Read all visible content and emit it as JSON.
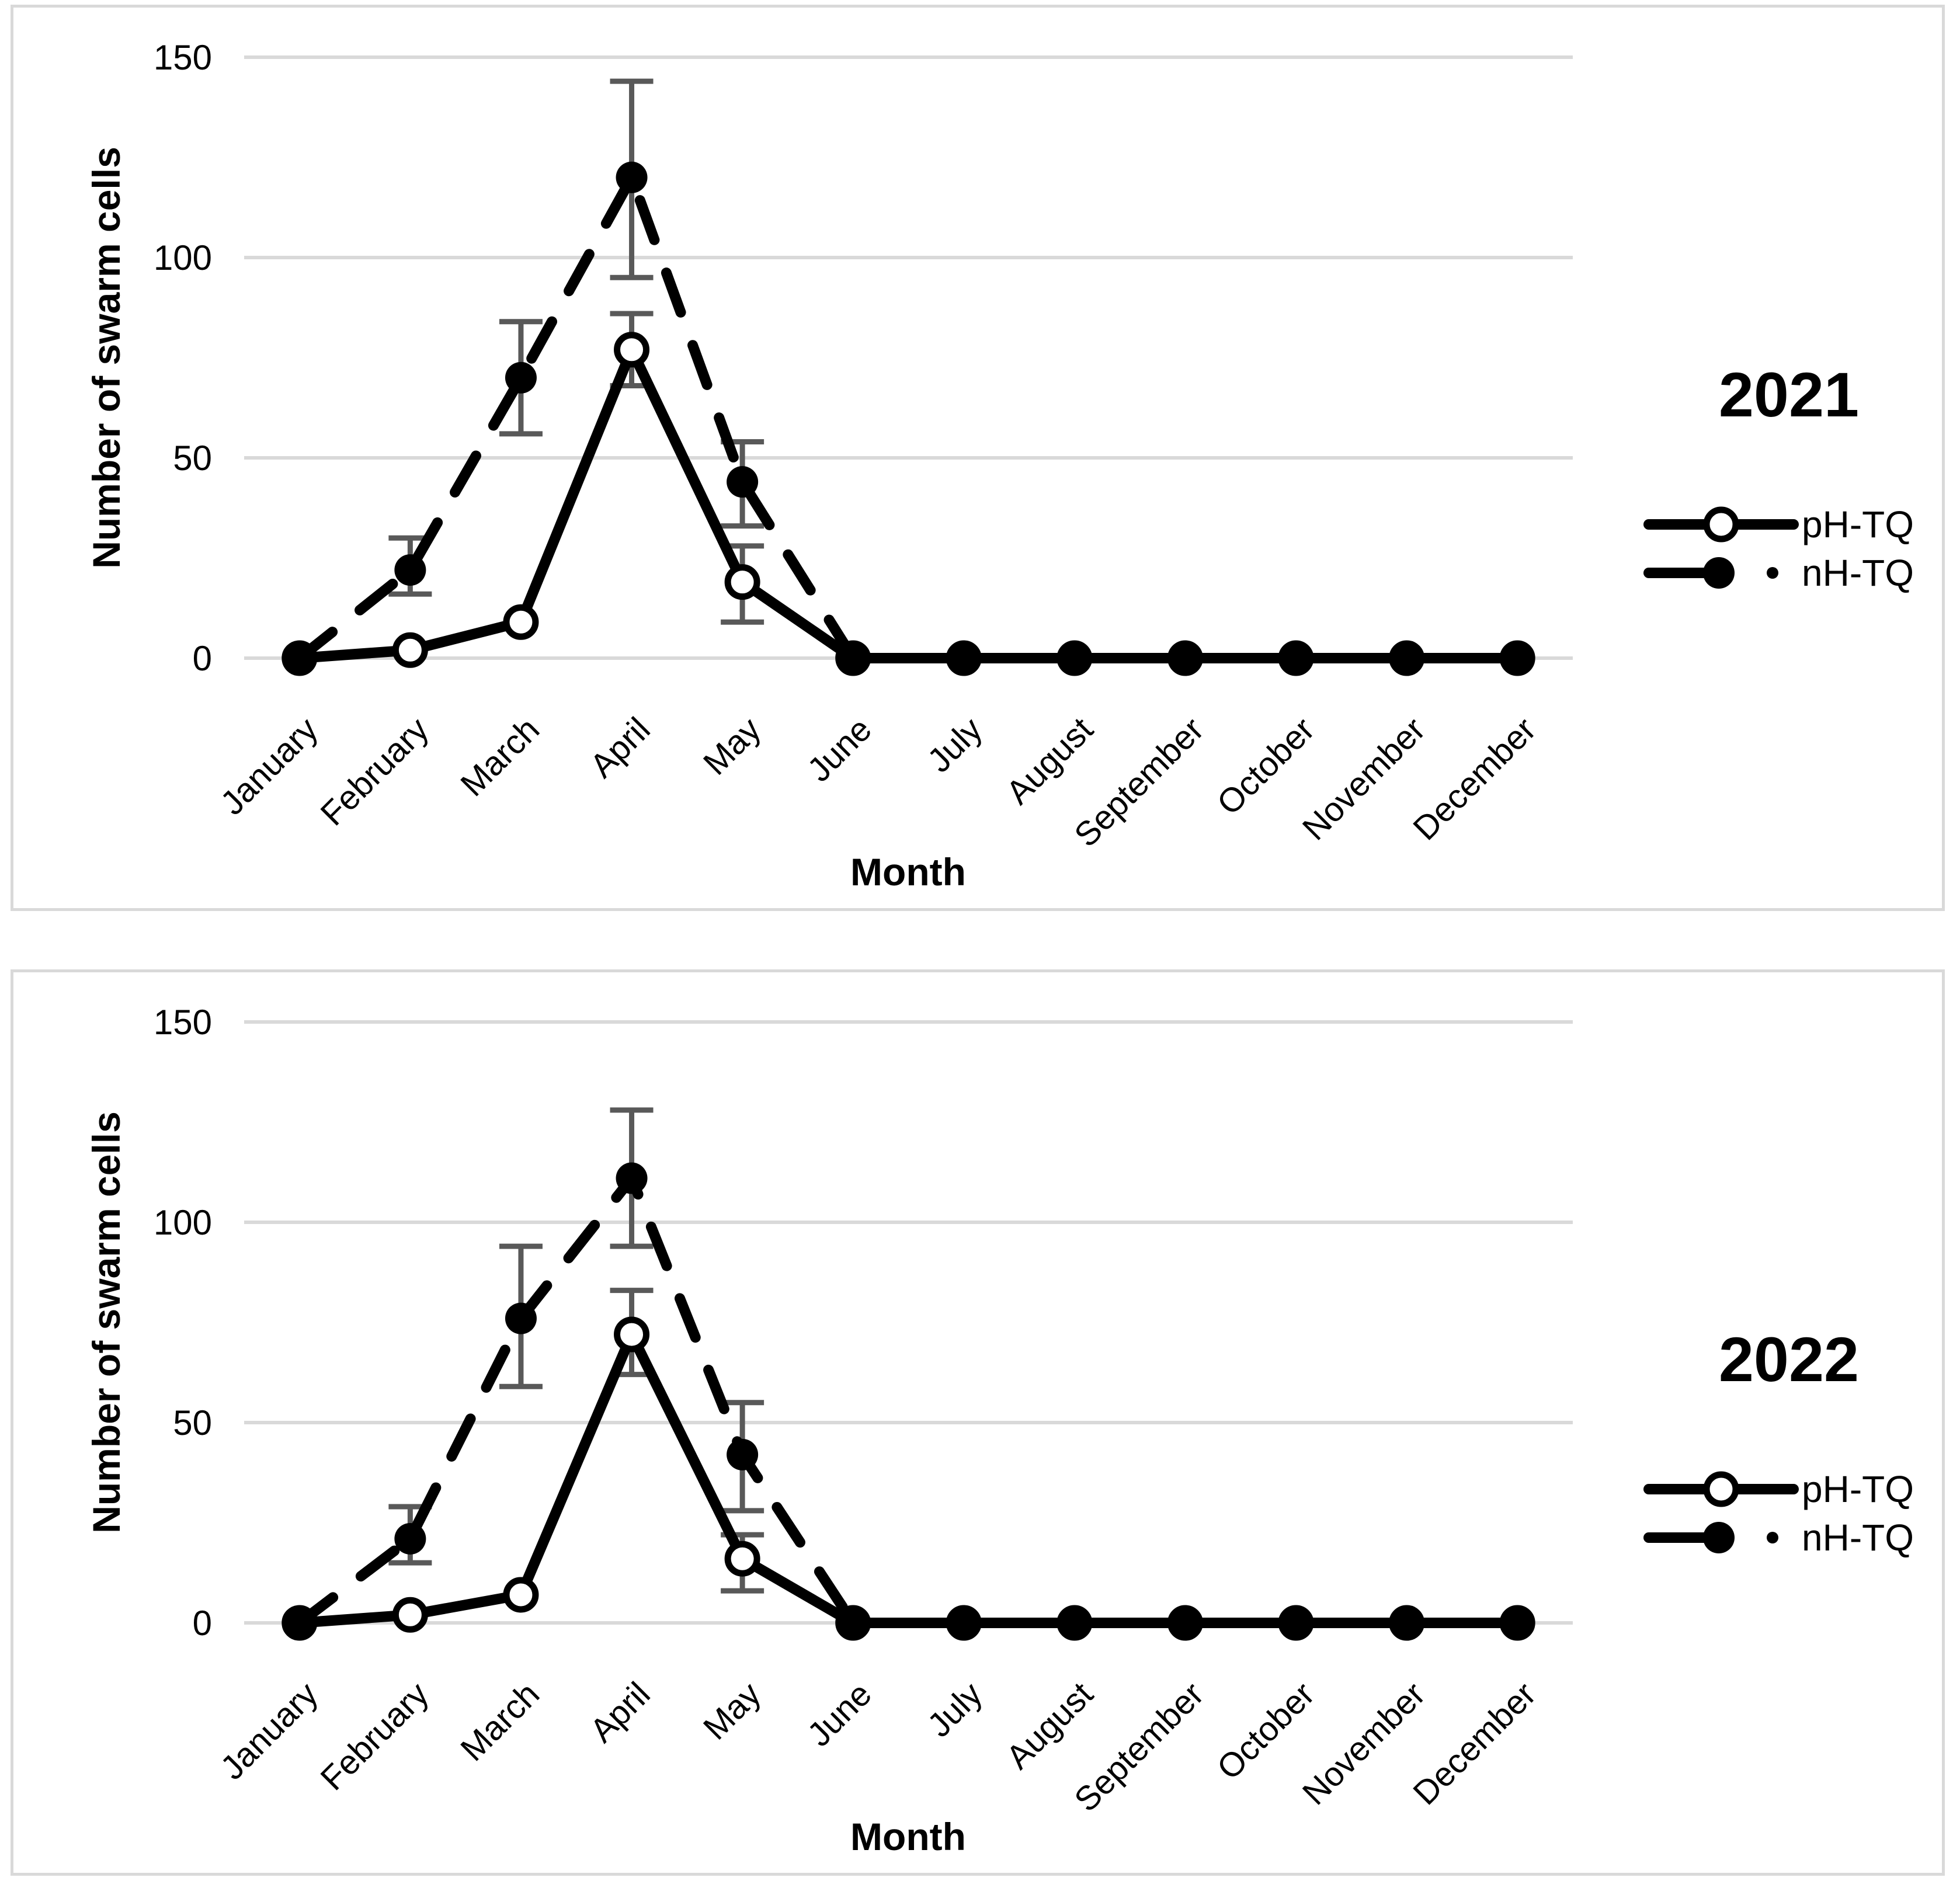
{
  "colors": {
    "series_line": "#000000",
    "marker_fill": "#000000",
    "marker_open_fill": "#ffffff",
    "error_bar": "#595959",
    "gridline": "#d9d9d9",
    "panel_border": "#d9d9d9",
    "text": "#000000",
    "background": "#ffffff"
  },
  "chart_data": [
    {
      "type": "line",
      "title": "2021",
      "xlabel": "Month",
      "ylabel": "Number of swarm cells",
      "ylim": [
        0,
        150
      ],
      "yticks": [
        0,
        50,
        100,
        150
      ],
      "grid": true,
      "legend_position": "right",
      "categories": [
        "January",
        "February",
        "March",
        "April",
        "May",
        "June",
        "July",
        "August",
        "September",
        "October",
        "November",
        "December"
      ],
      "series": [
        {
          "name": "pH-TQ",
          "line": "solid",
          "marker": "open-circle",
          "values": [
            0,
            2,
            9,
            77,
            19,
            0,
            0,
            0,
            0,
            0,
            0,
            0
          ],
          "error_low": [
            null,
            null,
            null,
            68,
            9,
            null,
            null,
            null,
            null,
            null,
            null,
            null
          ],
          "error_high": [
            null,
            null,
            null,
            86,
            28,
            null,
            null,
            null,
            null,
            null,
            null,
            null
          ]
        },
        {
          "name": "nH-TQ",
          "line": "dashed",
          "marker": "filled-circle",
          "values": [
            0,
            22,
            70,
            120,
            44,
            0,
            0,
            0,
            0,
            0,
            0,
            0
          ],
          "error_low": [
            null,
            16,
            56,
            95,
            33,
            null,
            null,
            null,
            null,
            null,
            null,
            null
          ],
          "error_high": [
            null,
            30,
            84,
            144,
            54,
            null,
            null,
            null,
            null,
            null,
            null,
            null
          ]
        }
      ]
    },
    {
      "type": "line",
      "title": "2022",
      "xlabel": "Month",
      "ylabel": "Number of swarm cells",
      "ylim": [
        0,
        150
      ],
      "yticks": [
        0,
        50,
        100,
        150
      ],
      "grid": true,
      "legend_position": "right",
      "categories": [
        "January",
        "February",
        "March",
        "April",
        "May",
        "June",
        "July",
        "August",
        "September",
        "October",
        "November",
        "December"
      ],
      "series": [
        {
          "name": "pH-TQ",
          "line": "solid",
          "marker": "open-circle",
          "values": [
            0,
            2,
            7,
            72,
            16,
            0,
            0,
            0,
            0,
            0,
            0,
            0
          ],
          "error_low": [
            null,
            null,
            null,
            62,
            8,
            null,
            null,
            null,
            null,
            null,
            null,
            null
          ],
          "error_high": [
            null,
            null,
            null,
            83,
            22,
            null,
            null,
            null,
            null,
            null,
            null,
            null
          ]
        },
        {
          "name": "nH-TQ",
          "line": "dashed",
          "marker": "filled-circle",
          "values": [
            0,
            21,
            76,
            111,
            42,
            0,
            0,
            0,
            0,
            0,
            0,
            0
          ],
          "error_low": [
            null,
            15,
            59,
            94,
            28,
            null,
            null,
            null,
            null,
            null,
            null,
            null
          ],
          "error_high": [
            null,
            29,
            94,
            128,
            55,
            null,
            null,
            null,
            null,
            null,
            null,
            null
          ]
        }
      ]
    }
  ]
}
